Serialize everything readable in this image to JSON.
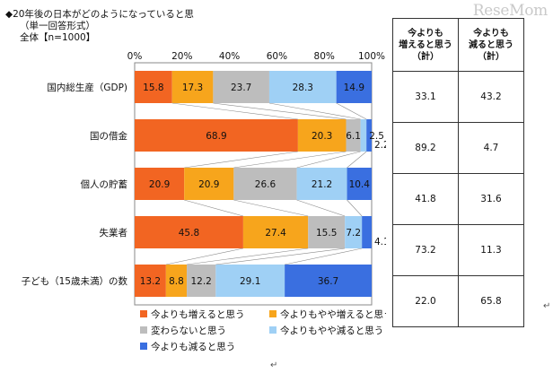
{
  "header": {
    "title_line1": "◆20年後の日本がどのようになっていると思",
    "title_line2": "（単一回答形式）",
    "title_line3": "全体【n=1000】",
    "watermark": "ReseMom"
  },
  "chart_data": {
    "type": "bar",
    "stacked": true,
    "orientation": "horizontal",
    "xlim": [
      0,
      100
    ],
    "ticks": [
      "0%",
      "20%",
      "40%",
      "60%",
      "80%",
      "100%"
    ],
    "categories": [
      "国内総生産（GDP)",
      "国の借金",
      "個人の貯蓄",
      "失業者",
      "子ども（15歳未満）の数"
    ],
    "series": [
      {
        "name": "今よりも増えると思う",
        "color": "#f26522",
        "values": [
          15.8,
          68.9,
          20.9,
          45.8,
          13.2
        ]
      },
      {
        "name": "今よりもやや増えると思う",
        "color": "#f7a51c",
        "values": [
          17.3,
          20.3,
          20.9,
          27.4,
          8.8
        ]
      },
      {
        "name": "変わらないと思う",
        "color": "#bdbdbd",
        "values": [
          23.7,
          6.1,
          26.6,
          15.5,
          12.2
        ]
      },
      {
        "name": "今よりもやや減ると思う",
        "color": "#9fd0f5",
        "values": [
          28.3,
          2.5,
          21.2,
          7.2,
          29.1
        ]
      },
      {
        "name": "今よりも減ると思う",
        "color": "#3a6fe0",
        "values": [
          14.9,
          2.2,
          10.4,
          4.1,
          36.7
        ]
      }
    ],
    "legend_labels": [
      "今よりも増えると思う",
      "今よりもやや増えると思う",
      "変わらないと思う",
      "今よりもやや減ると思う",
      "今よりも減ると思う"
    ]
  },
  "summary": {
    "headers": [
      "今よりも\n増えると思う\n（計）",
      "今よりも\n減ると思う\n（計）"
    ],
    "rows": [
      [
        "33.1",
        "43.2"
      ],
      [
        "89.2",
        "4.7"
      ],
      [
        "41.8",
        "31.6"
      ],
      [
        "73.2",
        "11.3"
      ],
      [
        "22.0",
        "65.8"
      ]
    ]
  }
}
